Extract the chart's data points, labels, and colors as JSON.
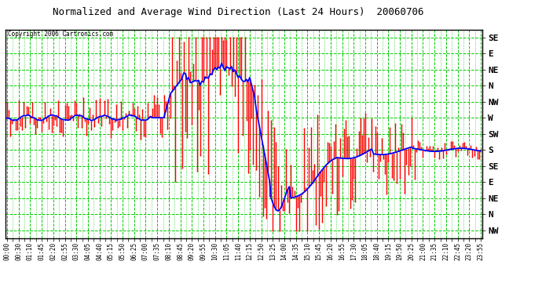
{
  "title": "Normalized and Average Wind Direction (Last 24 Hours)  20060706",
  "copyright": "Copyright 2006 Cartronics.com",
  "background_color": "#ffffff",
  "plot_bg_color": "#ffffff",
  "grid_color": "#00cc00",
  "ytick_labels_top_to_bottom": [
    "SE",
    "E",
    "NE",
    "N",
    "NW",
    "W",
    "SW",
    "S",
    "SE",
    "E",
    "NE",
    "N",
    "NW"
  ],
  "red_color": "#ff0000",
  "blue_color": "#0000ff",
  "xtick_labels": [
    "00:00",
    "00:30",
    "01:10",
    "01:45",
    "02:20",
    "02:55",
    "03:30",
    "04:05",
    "04:40",
    "05:15",
    "05:50",
    "06:25",
    "07:00",
    "07:35",
    "08:10",
    "08:45",
    "09:20",
    "09:55",
    "10:30",
    "11:05",
    "11:40",
    "12:15",
    "12:50",
    "13:25",
    "14:00",
    "14:35",
    "15:10",
    "15:45",
    "16:20",
    "16:55",
    "17:30",
    "18:05",
    "18:40",
    "19:15",
    "19:50",
    "20:25",
    "21:00",
    "21:35",
    "22:10",
    "22:45",
    "23:20",
    "23:55"
  ],
  "n_points": 288
}
